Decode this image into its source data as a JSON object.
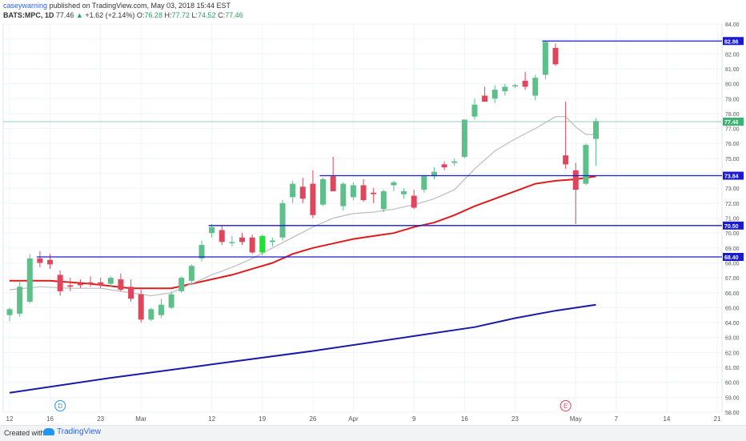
{
  "header": {
    "user": "caseywarning",
    "published_text": "published on TradingView.com, May 03, 2018 15:44 EST",
    "symbol": "BATS:MPC, 1D",
    "last": "77.46",
    "change": "+1.62 (+2.14%)",
    "o_label": "O:",
    "o_value": "76.28",
    "h_label": "H:",
    "h_value": "77.72",
    "l_label": "L:",
    "l_value": "74.52",
    "c_label": "C:",
    "c_value": "77.46"
  },
  "footer": {
    "created_with": "Created with",
    "brand": "TradingView"
  },
  "colors": {
    "up": "#5dbf8a",
    "down": "#e0465b",
    "highlight": "#22e033",
    "sma_short": "#bdbdbd",
    "sma_mid": "#e01b1b",
    "sma_long": "#1a1aa8",
    "level_line": "#1a1ad1",
    "price_line": "#8fd1b5"
  },
  "chart_data": {
    "type": "candlestick",
    "y_axis": {
      "min": 58,
      "max": 84,
      "ticks": [
        "84.00",
        "83.00",
        "82.00",
        "81.00",
        "80.00",
        "79.00",
        "78.00",
        "77.00",
        "76.00",
        "75.00",
        "74.00",
        "73.00",
        "72.00",
        "71.00",
        "70.00",
        "69.00",
        "68.00",
        "67.00",
        "66.00",
        "65.00",
        "64.00",
        "63.00",
        "62.00",
        "61.00",
        "60.00",
        "59.00",
        "58.00"
      ]
    },
    "x_axis_labels": [
      {
        "i": 0,
        "label": "12"
      },
      {
        "i": 4,
        "label": "16"
      },
      {
        "i": 9,
        "label": "23"
      },
      {
        "i": 13,
        "label": "Mar"
      },
      {
        "i": 20,
        "label": "12"
      },
      {
        "i": 25,
        "label": "19"
      },
      {
        "i": 30,
        "label": "26"
      },
      {
        "i": 34,
        "label": "Apr"
      },
      {
        "i": 40,
        "label": "9"
      },
      {
        "i": 45,
        "label": "16"
      },
      {
        "i": 50,
        "label": "23"
      },
      {
        "i": 56,
        "label": "May"
      },
      {
        "i": 60,
        "label": "7"
      },
      {
        "i": 65,
        "label": "14"
      },
      {
        "i": 70,
        "label": "21"
      }
    ],
    "candles": [
      {
        "o": 64.5,
        "h": 65.0,
        "l": 64.1,
        "c": 64.9
      },
      {
        "o": 64.6,
        "h": 66.8,
        "l": 64.4,
        "c": 66.4
      },
      {
        "o": 65.4,
        "h": 68.6,
        "l": 65.3,
        "c": 68.3
      },
      {
        "o": 68.3,
        "h": 68.8,
        "l": 67.7,
        "c": 68.0
      },
      {
        "o": 68.2,
        "h": 68.6,
        "l": 67.6,
        "c": 67.9
      },
      {
        "o": 67.2,
        "h": 67.5,
        "l": 65.8,
        "c": 66.1
      },
      {
        "o": 66.5,
        "h": 67.0,
        "l": 66.1,
        "c": 66.4
      },
      {
        "o": 66.6,
        "h": 66.9,
        "l": 66.3,
        "c": 66.5
      },
      {
        "o": 66.7,
        "h": 67.1,
        "l": 66.4,
        "c": 66.6
      },
      {
        "o": 66.7,
        "h": 67.0,
        "l": 66.3,
        "c": 66.5
      },
      {
        "o": 66.6,
        "h": 67.1,
        "l": 66.4,
        "c": 67.0
      },
      {
        "o": 66.9,
        "h": 67.3,
        "l": 66.1,
        "c": 66.2
      },
      {
        "o": 66.4,
        "h": 66.9,
        "l": 65.4,
        "c": 65.6
      },
      {
        "o": 65.9,
        "h": 66.2,
        "l": 64.0,
        "c": 64.2
      },
      {
        "o": 64.2,
        "h": 65.0,
        "l": 64.1,
        "c": 64.9
      },
      {
        "o": 64.5,
        "h": 65.6,
        "l": 64.3,
        "c": 65.2
      },
      {
        "o": 65.0,
        "h": 66.1,
        "l": 64.9,
        "c": 65.9
      },
      {
        "o": 66.1,
        "h": 67.1,
        "l": 66.0,
        "c": 67.0
      },
      {
        "o": 66.8,
        "h": 67.9,
        "l": 66.5,
        "c": 67.8
      },
      {
        "o": 68.3,
        "h": 69.5,
        "l": 68.1,
        "c": 69.2
      },
      {
        "o": 70.0,
        "h": 70.6,
        "l": 69.7,
        "c": 70.4
      },
      {
        "o": 70.2,
        "h": 70.5,
        "l": 69.2,
        "c": 69.4
      },
      {
        "o": 69.4,
        "h": 69.8,
        "l": 69.1,
        "c": 69.4
      },
      {
        "o": 69.7,
        "h": 70.0,
        "l": 69.2,
        "c": 69.4
      },
      {
        "o": 69.7,
        "h": 69.9,
        "l": 68.6,
        "c": 68.7
      },
      {
        "o": 68.7,
        "h": 69.9,
        "l": 68.5,
        "c": 69.8,
        "hl": true
      },
      {
        "o": 69.4,
        "h": 69.7,
        "l": 69.1,
        "c": 69.5
      },
      {
        "o": 69.7,
        "h": 72.2,
        "l": 69.5,
        "c": 72.0
      },
      {
        "o": 72.4,
        "h": 73.5,
        "l": 72.0,
        "c": 73.3
      },
      {
        "o": 73.1,
        "h": 73.7,
        "l": 72.0,
        "c": 72.3
      },
      {
        "o": 73.3,
        "h": 74.2,
        "l": 71.0,
        "c": 71.2
      },
      {
        "o": 71.9,
        "h": 73.7,
        "l": 71.8,
        "c": 73.6
      },
      {
        "o": 73.8,
        "h": 75.1,
        "l": 72.8,
        "c": 72.8
      },
      {
        "o": 71.8,
        "h": 73.4,
        "l": 71.5,
        "c": 73.3
      },
      {
        "o": 72.4,
        "h": 73.4,
        "l": 72.2,
        "c": 73.2
      },
      {
        "o": 73.2,
        "h": 73.6,
        "l": 72.1,
        "c": 72.2
      },
      {
        "o": 72.7,
        "h": 73.0,
        "l": 72.0,
        "c": 72.6
      },
      {
        "o": 71.6,
        "h": 72.9,
        "l": 71.4,
        "c": 72.8
      },
      {
        "o": 73.2,
        "h": 73.5,
        "l": 72.8,
        "c": 73.4
      },
      {
        "o": 72.6,
        "h": 73.0,
        "l": 72.3,
        "c": 72.8
      },
      {
        "o": 72.5,
        "h": 72.9,
        "l": 71.6,
        "c": 71.7
      },
      {
        "o": 72.9,
        "h": 73.9,
        "l": 72.7,
        "c": 73.8
      },
      {
        "o": 73.8,
        "h": 74.4,
        "l": 73.6,
        "c": 74.1
      },
      {
        "o": 74.6,
        "h": 74.8,
        "l": 74.2,
        "c": 74.4
      },
      {
        "o": 74.7,
        "h": 75.0,
        "l": 74.5,
        "c": 74.8
      },
      {
        "o": 75.1,
        "h": 77.5,
        "l": 75.0,
        "c": 77.6
      },
      {
        "o": 77.8,
        "h": 79.0,
        "l": 77.6,
        "c": 78.6
      },
      {
        "o": 79.2,
        "h": 79.8,
        "l": 78.8,
        "c": 78.8
      },
      {
        "o": 79.0,
        "h": 79.9,
        "l": 78.7,
        "c": 79.6
      },
      {
        "o": 79.5,
        "h": 80.0,
        "l": 79.2,
        "c": 79.8
      },
      {
        "o": 79.9,
        "h": 80.0,
        "l": 79.7,
        "c": 79.9
      },
      {
        "o": 80.2,
        "h": 80.8,
        "l": 79.6,
        "c": 79.8
      },
      {
        "o": 79.2,
        "h": 80.6,
        "l": 78.9,
        "c": 80.4
      },
      {
        "o": 80.6,
        "h": 82.9,
        "l": 80.3,
        "c": 82.8
      },
      {
        "o": 82.4,
        "h": 82.7,
        "l": 81.2,
        "c": 81.3
      },
      {
        "o": 75.2,
        "h": 78.8,
        "l": 74.3,
        "c": 74.6
      },
      {
        "o": 74.2,
        "h": 74.7,
        "l": 70.6,
        "c": 72.9
      },
      {
        "o": 73.3,
        "h": 76.0,
        "l": 73.2,
        "c": 75.9
      },
      {
        "o": 76.3,
        "h": 77.7,
        "l": 74.5,
        "c": 77.5
      }
    ],
    "sma_short": [
      [
        0,
        66.2
      ],
      [
        3,
        66.4
      ],
      [
        6,
        66.3
      ],
      [
        9,
        66.3
      ],
      [
        12,
        66.0
      ],
      [
        14,
        65.8
      ],
      [
        16,
        66.0
      ],
      [
        18,
        66.6
      ],
      [
        20,
        67.2
      ],
      [
        22,
        67.7
      ],
      [
        24,
        68.3
      ],
      [
        26,
        69.0
      ],
      [
        28,
        69.7
      ],
      [
        30,
        70.4
      ],
      [
        32,
        71.0
      ],
      [
        34,
        71.3
      ],
      [
        36,
        71.4
      ],
      [
        38,
        71.6
      ],
      [
        40,
        71.9
      ],
      [
        42,
        72.3
      ],
      [
        44,
        72.9
      ],
      [
        46,
        74.3
      ],
      [
        48,
        75.5
      ],
      [
        50,
        76.3
      ],
      [
        52,
        77.0
      ],
      [
        54,
        77.8
      ],
      [
        55,
        77.8
      ],
      [
        56,
        77.1
      ],
      [
        57,
        76.6
      ],
      [
        58,
        76.6
      ]
    ],
    "sma_mid": [
      [
        0,
        66.8
      ],
      [
        4,
        66.8
      ],
      [
        8,
        66.6
      ],
      [
        12,
        66.3
      ],
      [
        16,
        66.3
      ],
      [
        18,
        66.6
      ],
      [
        20,
        66.9
      ],
      [
        22,
        67.2
      ],
      [
        24,
        67.6
      ],
      [
        26,
        68.0
      ],
      [
        28,
        68.6
      ],
      [
        30,
        69.0
      ],
      [
        32,
        69.3
      ],
      [
        34,
        69.6
      ],
      [
        36,
        69.8
      ],
      [
        38,
        70.0
      ],
      [
        40,
        70.4
      ],
      [
        42,
        70.7
      ],
      [
        44,
        71.2
      ],
      [
        46,
        71.8
      ],
      [
        48,
        72.3
      ],
      [
        50,
        72.8
      ],
      [
        52,
        73.3
      ],
      [
        54,
        73.5
      ],
      [
        56,
        73.6
      ],
      [
        58,
        73.8
      ]
    ],
    "sma_long": [
      [
        0,
        59.3
      ],
      [
        10,
        60.3
      ],
      [
        20,
        61.2
      ],
      [
        30,
        62.1
      ],
      [
        40,
        63.1
      ],
      [
        46,
        63.7
      ],
      [
        50,
        64.3
      ],
      [
        54,
        64.8
      ],
      [
        58,
        65.2
      ]
    ],
    "levels": [
      {
        "value": 82.86,
        "label": "82.86",
        "x_start": 53
      },
      {
        "value": 73.84,
        "label": "73.84",
        "x_start": 31
      },
      {
        "value": 70.5,
        "label": "70.50",
        "x_start": 20
      },
      {
        "value": 68.4,
        "label": "68.40",
        "x_start": 3
      }
    ],
    "last_price": {
      "value": 77.46,
      "label": "77.46"
    },
    "markers": [
      {
        "i": 5,
        "label": "D"
      },
      {
        "i": 55,
        "label": "E"
      }
    ],
    "grid": true
  }
}
